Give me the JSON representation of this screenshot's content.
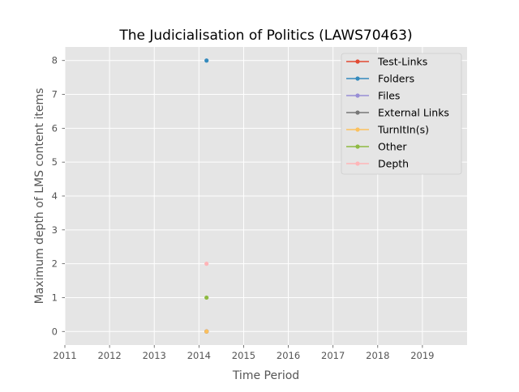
{
  "chart_data": {
    "type": "line",
    "title": "The Judicialisation of Politics (LAWS70463)",
    "xlabel": "Time Period",
    "ylabel": "Maximum depth of LMS content items",
    "xlim": [
      2011,
      2020
    ],
    "ylim": [
      -0.4,
      8.4
    ],
    "x_ticks": [
      "2011",
      "2012",
      "2013",
      "2014",
      "2015",
      "2016",
      "2017",
      "2018",
      "2019"
    ],
    "y_ticks": [
      "0",
      "1",
      "2",
      "3",
      "4",
      "5",
      "6",
      "7",
      "8"
    ],
    "grid": true,
    "legend_position": "top-right",
    "series": [
      {
        "name": "Test-Links",
        "color": "#e24a33",
        "x": [
          2014.17
        ],
        "y": [
          0
        ]
      },
      {
        "name": "Folders",
        "color": "#348abd",
        "x": [
          2014.17
        ],
        "y": [
          8
        ]
      },
      {
        "name": "Files",
        "color": "#988ed5",
        "x": [
          2014.17
        ],
        "y": [
          0
        ]
      },
      {
        "name": "External Links",
        "color": "#777777",
        "x": [
          2014.17
        ],
        "y": [
          0
        ]
      },
      {
        "name": "TurnItIn(s)",
        "color": "#fbc15e",
        "x": [
          2014.17
        ],
        "y": [
          0
        ]
      },
      {
        "name": "Other",
        "color": "#8eba42",
        "x": [
          2014.17
        ],
        "y": [
          1
        ]
      },
      {
        "name": "Depth",
        "color": "#ffb5b8",
        "x": [
          2014.17
        ],
        "y": [
          2
        ]
      }
    ]
  }
}
